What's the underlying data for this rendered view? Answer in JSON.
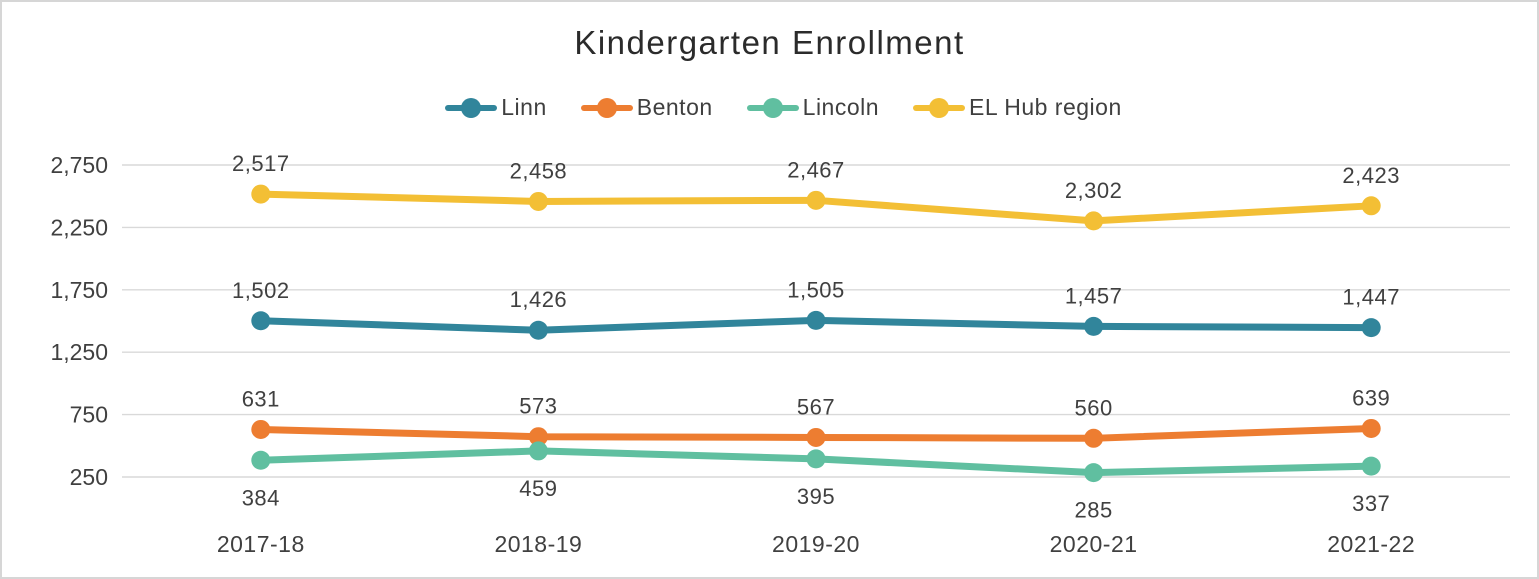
{
  "chart_data": {
    "type": "line",
    "title": "Kindergarten Enrollment",
    "categories": [
      "2017-18",
      "2018-19",
      "2019-20",
      "2020-21",
      "2021-22"
    ],
    "series": [
      {
        "name": "Linn",
        "color": "#31859B",
        "values": [
          1502,
          1426,
          1505,
          1457,
          1447
        ],
        "label_position": "above"
      },
      {
        "name": "Benton",
        "color": "#ED7D31",
        "values": [
          631,
          573,
          567,
          560,
          639
        ],
        "label_position": "above"
      },
      {
        "name": "Lincoln",
        "color": "#60BFA0",
        "values": [
          384,
          459,
          395,
          285,
          337
        ],
        "label_position": "below"
      },
      {
        "name": "EL Hub region",
        "color": "#F3BF35",
        "values": [
          2517,
          2458,
          2467,
          2302,
          2423
        ],
        "label_position": "above"
      }
    ],
    "y_axis": {
      "ticks": [
        250,
        750,
        1250,
        1750,
        2250,
        2750
      ],
      "min": 250,
      "max": 2750,
      "tick_labels": [
        "250",
        "750",
        "1,250",
        "1,750",
        "2,250",
        "2,750"
      ]
    },
    "data_labels": {
      "Linn": [
        "1,502",
        "1,426",
        "1,505",
        "1,457",
        "1,447"
      ],
      "Benton": [
        "631",
        "573",
        "567",
        "560",
        "639"
      ],
      "Lincoln": [
        "384",
        "459",
        "395",
        "285",
        "337"
      ],
      "EL Hub region": [
        "2,517",
        "2,458",
        "2,467",
        "2,302",
        "2,423"
      ]
    },
    "legend_position": "top",
    "grid": true,
    "colors": {
      "gridline": "#D9D9D9",
      "title_text": "#2b2b2b",
      "axis_text": "#404040"
    }
  }
}
